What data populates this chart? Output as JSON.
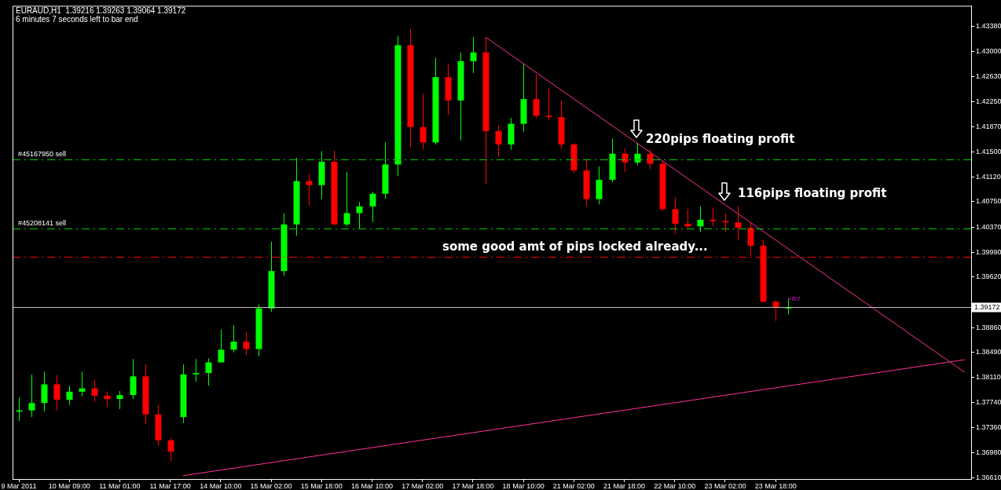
{
  "chart_data": {
    "type": "candlestick",
    "title": "EURAUD,H1  1.39216 1.39263 1.39064 1.39172",
    "subtitle": "6 minutes 7 seconds left to bar end",
    "categories": [
      "9 Mar 2011",
      null,
      null,
      null,
      "10 Mar 09:00",
      null,
      null,
      null,
      "11 Mar 01:00",
      null,
      null,
      null,
      "11 Mar 17:00",
      null,
      null,
      null,
      "14 Mar 10:00",
      null,
      null,
      null,
      "15 Mar 02:00",
      null,
      null,
      null,
      "15 Mar 18:00",
      null,
      null,
      null,
      "16 Mar 10:00",
      null,
      null,
      null,
      "17 Mar 02:00",
      null,
      null,
      null,
      "17 Mar 18:00",
      null,
      null,
      null,
      "18 Mar 10:00",
      null,
      null,
      null,
      "21 Mar 02:00",
      null,
      null,
      null,
      "21 Mar 18:00",
      null,
      null,
      null,
      "22 Mar 10:00",
      null,
      null,
      null,
      "23 Mar 02:00",
      null,
      null,
      null,
      "23 Mar 18:00",
      null,
      null,
      null,
      null,
      null,
      null,
      null,
      null,
      null,
      null,
      null,
      null,
      null,
      null,
      null
    ],
    "ohlc": [
      [
        1.376,
        1.3781,
        1.3746,
        1.3762
      ],
      [
        1.3762,
        1.3816,
        1.3752,
        1.3773
      ],
      [
        1.3773,
        1.382,
        1.376,
        1.3801
      ],
      [
        1.3801,
        1.3815,
        1.3762,
        1.3778
      ],
      [
        1.3778,
        1.3799,
        1.377,
        1.379
      ],
      [
        1.379,
        1.382,
        1.3783,
        1.3795
      ],
      [
        1.3795,
        1.3808,
        1.3775,
        1.3784
      ],
      [
        1.3784,
        1.379,
        1.3767,
        1.3779
      ],
      [
        1.3779,
        1.3791,
        1.3764,
        1.3785
      ],
      [
        1.3785,
        1.3839,
        1.3779,
        1.3813
      ],
      [
        1.3813,
        1.3831,
        1.3741,
        1.3756
      ],
      [
        1.3756,
        1.377,
        1.3709,
        1.3717
      ],
      [
        1.3717,
        1.3721,
        1.3686,
        1.37
      ],
      [
        1.3752,
        1.3831,
        1.3743,
        1.3816
      ],
      [
        1.3816,
        1.3839,
        1.3805,
        1.3818
      ],
      [
        1.3818,
        1.384,
        1.3799,
        1.3834
      ],
      [
        1.3834,
        1.3883,
        1.3834,
        1.3853
      ],
      [
        1.3853,
        1.389,
        1.3849,
        1.3865
      ],
      [
        1.3865,
        1.388,
        1.3845,
        1.3854
      ],
      [
        1.3854,
        1.3921,
        1.3843,
        1.3915
      ],
      [
        1.3915,
        1.4015,
        1.391,
        1.3971
      ],
      [
        1.3971,
        1.4058,
        1.3964,
        1.4041
      ],
      [
        1.4041,
        1.4141,
        1.4024,
        1.4106
      ],
      [
        1.4106,
        1.4117,
        1.407,
        1.41
      ],
      [
        1.41,
        1.4151,
        1.4079,
        1.4135
      ],
      [
        1.4135,
        1.4152,
        1.404,
        1.4041
      ],
      [
        1.4041,
        1.412,
        1.4038,
        1.4058
      ],
      [
        1.4058,
        1.4075,
        1.4035,
        1.4068
      ],
      [
        1.4068,
        1.409,
        1.4044,
        1.4087
      ],
      [
        1.4087,
        1.4164,
        1.4079,
        1.4131
      ],
      [
        1.4131,
        1.4324,
        1.4114,
        1.431
      ],
      [
        1.431,
        1.4334,
        1.4157,
        1.4187
      ],
      [
        1.4187,
        1.4237,
        1.4153,
        1.4164
      ],
      [
        1.4164,
        1.4291,
        1.4161,
        1.4262
      ],
      [
        1.4262,
        1.4281,
        1.4205,
        1.4227
      ],
      [
        1.4227,
        1.4299,
        1.4167,
        1.4286
      ],
      [
        1.4286,
        1.4322,
        1.4268,
        1.4299
      ],
      [
        1.4299,
        1.4322,
        1.4102,
        1.4181
      ],
      [
        1.4181,
        1.419,
        1.4143,
        1.4161
      ],
      [
        1.4161,
        1.4201,
        1.4153,
        1.4192
      ],
      [
        1.4192,
        1.4281,
        1.418,
        1.4229
      ],
      [
        1.4229,
        1.4266,
        1.42,
        1.4204
      ],
      [
        1.4204,
        1.4245,
        1.4198,
        1.4202
      ],
      [
        1.4202,
        1.4227,
        1.4155,
        1.4161
      ],
      [
        1.4161,
        1.4163,
        1.4118,
        1.4122
      ],
      [
        1.4122,
        1.4138,
        1.4068,
        1.4079
      ],
      [
        1.4079,
        1.4128,
        1.4071,
        1.4108
      ],
      [
        1.4108,
        1.417,
        1.4104,
        1.4147
      ],
      [
        1.4147,
        1.4155,
        1.412,
        1.4134
      ],
      [
        1.4134,
        1.4163,
        1.413,
        1.4147
      ],
      [
        1.4147,
        1.4153,
        1.4124,
        1.4132
      ],
      [
        1.4132,
        1.4135,
        1.4061,
        1.4064
      ],
      [
        1.4064,
        1.4082,
        1.4027,
        1.4042
      ],
      [
        1.4042,
        1.4064,
        1.4035,
        1.4038
      ],
      [
        1.4038,
        1.4068,
        1.403,
        1.4048
      ],
      [
        1.4048,
        1.4066,
        1.4038,
        1.4046
      ],
      [
        1.4046,
        1.4058,
        1.4029,
        1.4044
      ],
      [
        1.4044,
        1.4068,
        1.4018,
        1.4036
      ],
      [
        1.4036,
        1.4044,
        1.3994,
        1.4009
      ],
      [
        1.4009,
        1.4018,
        1.3924,
        1.3925
      ],
      [
        1.3925,
        1.3927,
        1.3896,
        1.3917
      ],
      [
        1.3915,
        1.393,
        1.3906,
        1.3917
      ],
      null,
      null,
      null,
      null,
      null,
      null,
      null,
      null,
      null,
      null,
      null,
      null,
      null,
      null
    ],
    "colors": [
      "#00ff00",
      "#00ff00",
      "#00ff00",
      "#ff0000",
      "#00ff00",
      "#00ff00",
      "#ff0000",
      "#ff0000",
      "#00ff00",
      "#00ff00",
      "#ff0000",
      "#ff0000",
      "#ff0000",
      "#00ff00",
      "#00ff00",
      "#00ff00",
      "#00ff00",
      "#00ff00",
      "#ff0000",
      "#00ff00",
      "#00ff00",
      "#00ff00",
      "#00ff00",
      "#ff0000",
      "#00ff00",
      "#ff0000",
      "#00ff00",
      "#00ff00",
      "#00ff00",
      "#00ff00",
      "#00ff00",
      "#ff0000",
      "#ff0000",
      "#00ff00",
      "#ff0000",
      "#00ff00",
      "#00ff00",
      "#ff0000",
      "#ff0000",
      "#00ff00",
      "#00ff00",
      "#ff0000",
      "#ff0000",
      "#ff0000",
      "#ff0000",
      "#ff0000",
      "#00ff00",
      "#00ff00",
      "#ff0000",
      "#00ff00",
      "#ff0000",
      "#ff0000",
      "#ff0000",
      "#ff0000",
      "#00ff00",
      "#ff0000",
      "#ff0000",
      "#ff0000",
      "#ff0000",
      "#ff0000",
      "#ff0000",
      "#00ff00",
      null,
      null,
      null,
      null,
      null,
      null,
      null,
      null,
      null,
      null,
      null,
      null,
      null,
      null
    ],
    "series": [
      {
        "type": "line",
        "color": "#ff3399",
        "values": [
          null,
          null,
          null,
          null,
          null,
          null,
          null,
          null,
          null,
          null,
          null,
          null,
          null,
          null,
          null,
          null,
          null,
          null,
          null,
          null,
          null,
          null,
          null,
          null,
          null,
          null,
          null,
          null,
          null,
          null,
          null,
          null,
          null,
          null,
          null,
          null,
          null,
          1.4322,
          null,
          null,
          null,
          null,
          null,
          null,
          null,
          null,
          null,
          null,
          null,
          null,
          null,
          null,
          null,
          null,
          null,
          null,
          null,
          null,
          null,
          null,
          null,
          null,
          null,
          null,
          null,
          null,
          null,
          null,
          null,
          null,
          null,
          null,
          null,
          null,
          null,
          1.3819
        ]
      },
      {
        "type": "line",
        "color": "#ff3399",
        "values": [
          null,
          null,
          null,
          null,
          null,
          null,
          null,
          null,
          null,
          null,
          null,
          null,
          null,
          1.3664,
          null,
          null,
          null,
          null,
          null,
          null,
          null,
          null,
          null,
          null,
          null,
          null,
          null,
          null,
          null,
          null,
          null,
          null,
          null,
          null,
          null,
          null,
          null,
          null,
          null,
          null,
          null,
          null,
          null,
          null,
          null,
          null,
          null,
          null,
          null,
          null,
          null,
          null,
          null,
          null,
          null,
          null,
          null,
          null,
          null,
          null,
          null,
          null,
          null,
          null,
          null,
          null,
          null,
          null,
          null,
          null,
          null,
          null,
          null,
          null,
          null,
          1.3838
        ]
      }
    ],
    "marker": "none",
    "ylim": [
      1.3659,
      1.4369
    ],
    "yticks": [
      {
        "value": 1.3661,
        "label": "1.36610"
      },
      {
        "value": 1.3698,
        "label": "1.36980"
      },
      {
        "value": 1.3736,
        "label": "1.37360"
      },
      {
        "value": 1.3774,
        "label": "1.37740"
      },
      {
        "value": 1.3811,
        "label": "1.38110"
      },
      {
        "value": 1.3849,
        "label": "1.38490"
      },
      {
        "value": 1.3886,
        "label": "1.38860"
      },
      {
        "value": 1.3962,
        "label": "1.39620"
      },
      {
        "value": 1.3999,
        "label": "1.39990"
      },
      {
        "value": 1.4037,
        "label": "1.40370"
      },
      {
        "value": 1.4075,
        "label": "1.40750"
      },
      {
        "value": 1.4112,
        "label": "1.41120"
      },
      {
        "value": 1.415,
        "label": "1.41500"
      },
      {
        "value": 1.4187,
        "label": "1.41870"
      },
      {
        "value": 1.4225,
        "label": "1.42250"
      },
      {
        "value": 1.4263,
        "label": "1.42630"
      },
      {
        "value": 1.43,
        "label": "1.43000"
      },
      {
        "value": 1.4338,
        "label": "1.43380"
      }
    ],
    "ref_lines": [
      {
        "axis": "y",
        "value": 1.4139,
        "label": "#45167950 sell",
        "color": "#00cc00",
        "line_style": "dashed"
      },
      {
        "axis": "y",
        "value": 1.4035,
        "label": "#45208141 sell",
        "color": "#00cc00",
        "line_style": "dashed"
      },
      {
        "axis": "y",
        "value": 1.3993,
        "color": "#ff0000",
        "line_style": "dashed"
      },
      {
        "axis": "y",
        "value": 1.39172,
        "label": "1.39172",
        "color": "#c0c0c0",
        "line_style": "solid"
      }
    ],
    "annotations": [
      "220pips floating profit",
      "116pips floating profit",
      "some good amt of pips locked already...",
      "<6:7"
    ],
    "legend": false
  }
}
